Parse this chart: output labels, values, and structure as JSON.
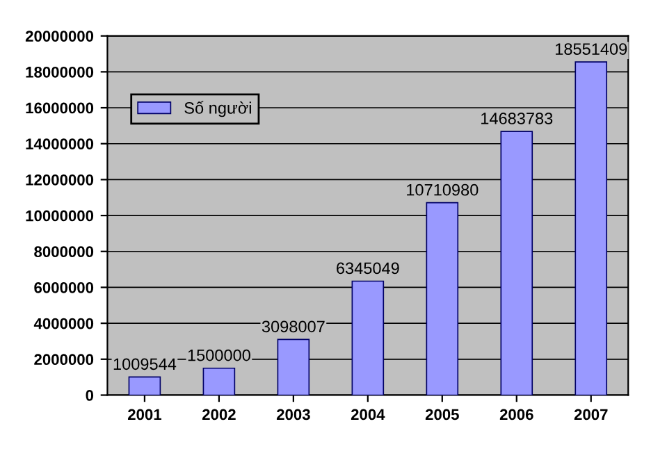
{
  "chart_data": {
    "type": "bar",
    "categories": [
      "2001",
      "2002",
      "2003",
      "2004",
      "2005",
      "2006",
      "2007"
    ],
    "series": [
      {
        "name": "Số người",
        "color": "#9999ff",
        "values": [
          1009544,
          1500000,
          3098007,
          6345049,
          10710980,
          14683783,
          18551409
        ]
      }
    ],
    "ylim": [
      0,
      20000000
    ],
    "yticks": [
      0,
      2000000,
      4000000,
      6000000,
      8000000,
      10000000,
      12000000,
      14000000,
      16000000,
      18000000,
      20000000
    ],
    "grid": "y",
    "legend": "upper left",
    "data_labels": true
  }
}
